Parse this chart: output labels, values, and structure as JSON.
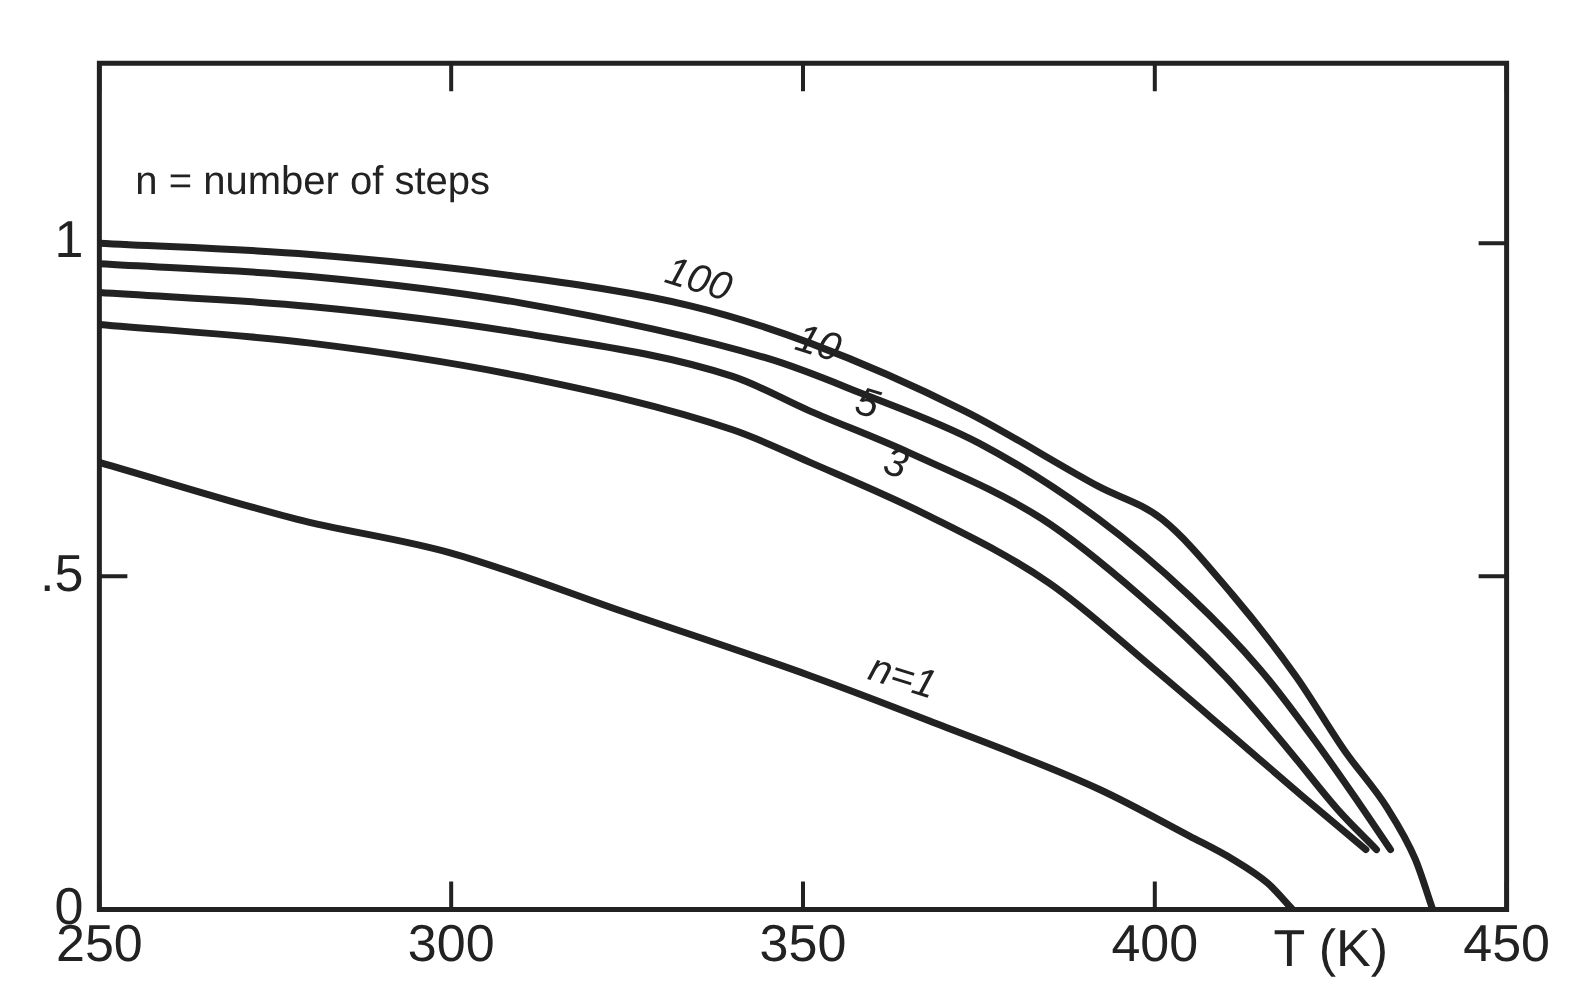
{
  "chart_data": {
    "type": "line",
    "xlabel": "T (K)",
    "xlim": [
      250,
      450
    ],
    "ylim": [
      0,
      1.27
    ],
    "xticks": [
      250,
      300,
      350,
      400,
      450
    ],
    "yticks": [
      0,
      {
        "value": 0.5,
        "label": ".5"
      },
      1
    ],
    "grid": false,
    "legend": false,
    "marker": "none",
    "line_style": "solid",
    "series": [
      {
        "color": "#222222",
        "x": [
          250,
          280,
          308,
          334,
          351,
          373,
          392,
          401,
          411,
          420,
          427,
          433,
          437,
          439.5
        ],
        "values": [
          1.0,
          0.983,
          0.952,
          0.906,
          0.85,
          0.748,
          0.635,
          0.586,
          0.473,
          0.351,
          0.238,
          0.153,
          0.076,
          0
        ]
      },
      {
        "color": "#222222",
        "x": [
          250,
          280,
          310,
          345,
          358,
          375,
          392,
          405,
          415,
          423,
          429,
          433.5
        ],
        "values": [
          0.969,
          0.95,
          0.91,
          0.827,
          0.776,
          0.7,
          0.586,
          0.47,
          0.36,
          0.25,
          0.16,
          0.09
        ]
      },
      {
        "color": "#222222",
        "x": [
          250,
          280,
          310,
          340,
          351,
          365,
          384,
          398,
          410,
          419,
          426,
          431.5
        ],
        "values": [
          0.926,
          0.905,
          0.865,
          0.8,
          0.748,
          0.686,
          0.586,
          0.47,
          0.35,
          0.24,
          0.15,
          0.09
        ]
      },
      {
        "color": "#222222",
        "x": [
          250,
          280,
          310,
          340,
          351,
          368,
          385,
          400,
          410,
          421,
          430
        ],
        "values": [
          0.878,
          0.85,
          0.8,
          0.72,
          0.671,
          0.59,
          0.49,
          0.36,
          0.27,
          0.17,
          0.09
        ]
      },
      {
        "color": "#222222",
        "x": [
          250,
          278,
          300,
          325,
          351,
          368,
          392,
          405,
          411,
          416,
          419.6
        ],
        "values": [
          0.671,
          0.586,
          0.535,
          0.445,
          0.351,
          0.283,
          0.181,
          0.11,
          0.076,
          0.04,
          0
        ]
      }
    ],
    "annotations": [
      "n = number of steps",
      {
        "text": "100",
        "x": 334,
        "y": 0.906
      },
      {
        "text": "10",
        "x": 351,
        "y": 0.81
      },
      {
        "text": "5",
        "x": 358,
        "y": 0.72
      },
      {
        "text": "3",
        "x": 362,
        "y": 0.63
      },
      {
        "text": "n=1",
        "x": 363,
        "y": 0.31
      }
    ]
  }
}
